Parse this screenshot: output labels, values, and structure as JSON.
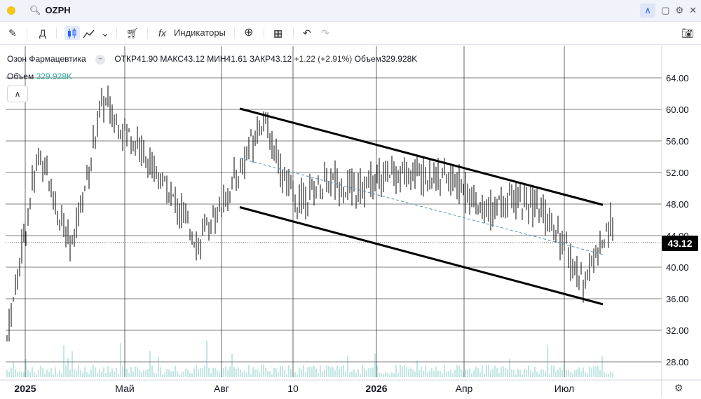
{
  "topbar": {
    "symbol": "OZPH",
    "search_icon": "search-icon"
  },
  "toolbar": {
    "period_label": "Д",
    "indicators_label": "Индикаторы"
  },
  "legend": {
    "name": "Озон Фармацевтика",
    "open": "ОТКР41.90",
    "high": "МАКС43.12",
    "low": "МИН41.61",
    "close": "ЗАКР43.12",
    "change": "+1.22 (+2.91%)",
    "volume": "Объем329.928K"
  },
  "volume_pane": {
    "label": "Объем",
    "value": "329.928K"
  },
  "current_price": "43.12",
  "colors": {
    "candle": "#000000",
    "volume": "#26a69a",
    "trendline": "#000000",
    "midline": "#5a8fb0",
    "badge": "#000000"
  },
  "chart_data": {
    "type": "line",
    "symbol": "OZPH",
    "y_ticks": [
      "64.00",
      "60.00",
      "56.00",
      "52.00",
      "48.00",
      "44.00",
      "40.00",
      "36.00",
      "32.00",
      "28.00"
    ],
    "x_ticks": [
      "2025",
      "Май",
      "Авг",
      "10",
      "2026",
      "Апр",
      "Июл"
    ],
    "ylim": [
      26,
      66
    ],
    "x": [
      "2025-01",
      "2025-02",
      "2025-03",
      "2025-04",
      "2025-05",
      "2025-06",
      "2025-07",
      "2025-08",
      "2025-09",
      "2025-10",
      "2025-11",
      "2025-12",
      "2026-01",
      "2026-02",
      "2026-03",
      "2026-04",
      "2026-05",
      "2026-06",
      "2026-07",
      "2026-08"
    ],
    "series": [
      {
        "values": [
          31,
          55,
          42,
          61,
          56,
          50,
          43,
          50,
          59,
          48,
          51,
          50,
          52,
          52,
          51,
          47,
          49,
          46,
          38,
          46
        ]
      }
    ],
    "last_close": 43.12,
    "grid": true
  }
}
